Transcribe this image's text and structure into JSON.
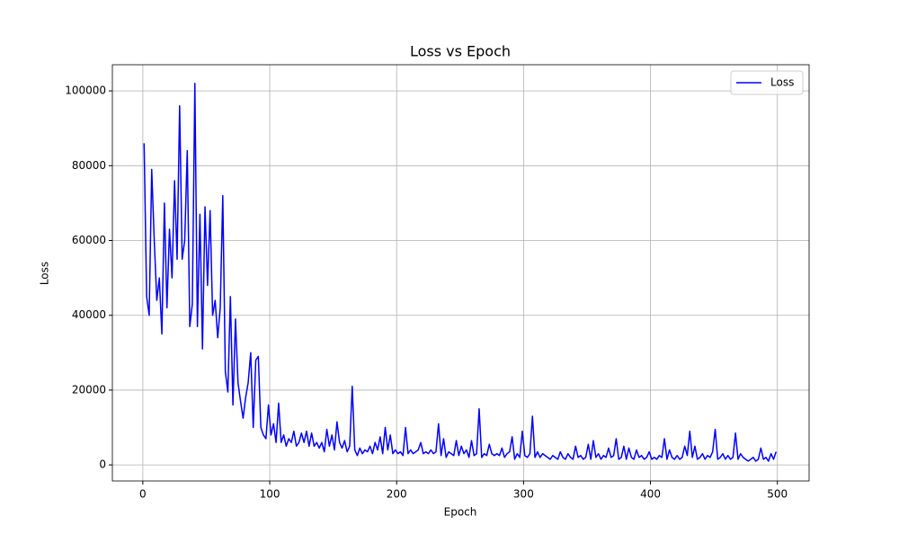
{
  "chart_data": {
    "type": "line",
    "title": "Loss vs Epoch",
    "x_label": "Epoch",
    "y_label": "Loss",
    "x": [
      1,
      3,
      5,
      7,
      9,
      11,
      13,
      15,
      17,
      19,
      21,
      23,
      25,
      27,
      29,
      31,
      33,
      35,
      37,
      39,
      41,
      43,
      45,
      47,
      49,
      51,
      53,
      55,
      57,
      59,
      61,
      63,
      65,
      67,
      69,
      71,
      73,
      75,
      77,
      79,
      81,
      83,
      85,
      87,
      89,
      91,
      93,
      95,
      97,
      99,
      101,
      103,
      105,
      107,
      109,
      111,
      113,
      115,
      117,
      119,
      121,
      123,
      125,
      127,
      129,
      131,
      133,
      135,
      137,
      139,
      141,
      143,
      145,
      147,
      149,
      151,
      153,
      155,
      157,
      159,
      161,
      163,
      165,
      167,
      169,
      171,
      173,
      175,
      177,
      179,
      181,
      183,
      185,
      187,
      189,
      191,
      193,
      195,
      197,
      199,
      201,
      203,
      205,
      207,
      209,
      211,
      213,
      215,
      217,
      219,
      221,
      223,
      225,
      227,
      229,
      231,
      233,
      235,
      237,
      239,
      241,
      243,
      245,
      247,
      249,
      251,
      253,
      255,
      257,
      259,
      261,
      263,
      265,
      267,
      269,
      271,
      273,
      275,
      277,
      279,
      281,
      283,
      285,
      287,
      289,
      291,
      293,
      295,
      297,
      299,
      301,
      303,
      305,
      307,
      309,
      311,
      313,
      315,
      317,
      319,
      321,
      323,
      325,
      327,
      329,
      331,
      333,
      335,
      337,
      339,
      341,
      343,
      345,
      347,
      349,
      351,
      353,
      355,
      357,
      359,
      361,
      363,
      365,
      367,
      369,
      371,
      373,
      375,
      377,
      379,
      381,
      383,
      385,
      387,
      389,
      391,
      393,
      395,
      397,
      399,
      401,
      403,
      405,
      407,
      409,
      411,
      413,
      415,
      417,
      419,
      421,
      423,
      425,
      427,
      429,
      431,
      433,
      435,
      437,
      439,
      441,
      443,
      445,
      447,
      449,
      451,
      453,
      455,
      457,
      459,
      461,
      463,
      465,
      467,
      469,
      471,
      473,
      475,
      477,
      479,
      481,
      483,
      485,
      487,
      489,
      491,
      493,
      495,
      497,
      499
    ],
    "series": [
      {
        "name": "Loss",
        "color": "#0000ff",
        "values": [
          86000,
          45000,
          40000,
          79000,
          60000,
          44000,
          50000,
          35000,
          70000,
          42000,
          63000,
          50000,
          76000,
          55000,
          96000,
          55000,
          60000,
          84000,
          37000,
          43000,
          102000,
          37000,
          67000,
          31000,
          69000,
          48000,
          68000,
          40000,
          44000,
          34000,
          42000,
          72000,
          25000,
          19500,
          45000,
          16000,
          39000,
          22000,
          17000,
          12500,
          18000,
          22000,
          30000,
          10000,
          28000,
          29000,
          10000,
          8000,
          7000,
          16000,
          8000,
          11000,
          6000,
          16500,
          6000,
          8000,
          5000,
          7000,
          6000,
          9000,
          5000,
          6000,
          8500,
          6000,
          9000,
          5000,
          8500,
          5000,
          6000,
          4500,
          6000,
          3500,
          9500,
          5000,
          8000,
          4000,
          11500,
          6000,
          4500,
          6500,
          3500,
          5000,
          21000,
          4000,
          2500,
          4500,
          3000,
          4000,
          3500,
          5000,
          3000,
          6000,
          4000,
          7500,
          3000,
          10000,
          4000,
          8000,
          3000,
          4000,
          3000,
          3500,
          2500,
          10000,
          3000,
          4000,
          3000,
          3500,
          4000,
          6000,
          3000,
          3500,
          3000,
          4000,
          3000,
          3500,
          11000,
          2500,
          7000,
          2000,
          3500,
          3000,
          2500,
          6500,
          2500,
          5000,
          3000,
          4000,
          2000,
          6500,
          2500,
          3000,
          15000,
          2000,
          3000,
          2500,
          5500,
          3000,
          2500,
          3000,
          2500,
          4500,
          2000,
          3000,
          3500,
          7500,
          1500,
          3000,
          2000,
          9000,
          2500,
          2000,
          3000,
          13000,
          2000,
          3500,
          2000,
          3000,
          2500,
          2000,
          1500,
          2500,
          2000,
          1500,
          3500,
          2000,
          1500,
          3000,
          2000,
          1500,
          5000,
          2000,
          2500,
          1500,
          2000,
          5500,
          1500,
          6500,
          2000,
          3000,
          1500,
          2500,
          2000,
          4500,
          2000,
          2500,
          7000,
          1500,
          2000,
          5000,
          1500,
          4500,
          2000,
          1500,
          4000,
          2000,
          2500,
          1500,
          2000,
          3500,
          1500,
          2000,
          1500,
          2500,
          2000,
          7000,
          1500,
          4000,
          2000,
          1500,
          2500,
          1500,
          2000,
          5000,
          2500,
          9000,
          2000,
          5000,
          1500,
          2000,
          3000,
          1500,
          2500,
          2000,
          3500,
          9500,
          1500,
          2000,
          3000,
          1500,
          2500,
          1500,
          2000,
          8500,
          1500,
          3000,
          2000,
          1500,
          1000,
          1500,
          2000,
          1000,
          1500,
          4500,
          1500,
          2000,
          1000,
          3000,
          1500,
          3500
        ]
      }
    ],
    "xlim": [
      -24,
      525
    ],
    "ylim": [
      -4300,
      107000
    ],
    "xticks": [
      0,
      100,
      200,
      300,
      400,
      500
    ],
    "yticks": [
      0,
      20000,
      40000,
      60000,
      80000,
      100000
    ],
    "grid": true,
    "legend": "upper right"
  }
}
